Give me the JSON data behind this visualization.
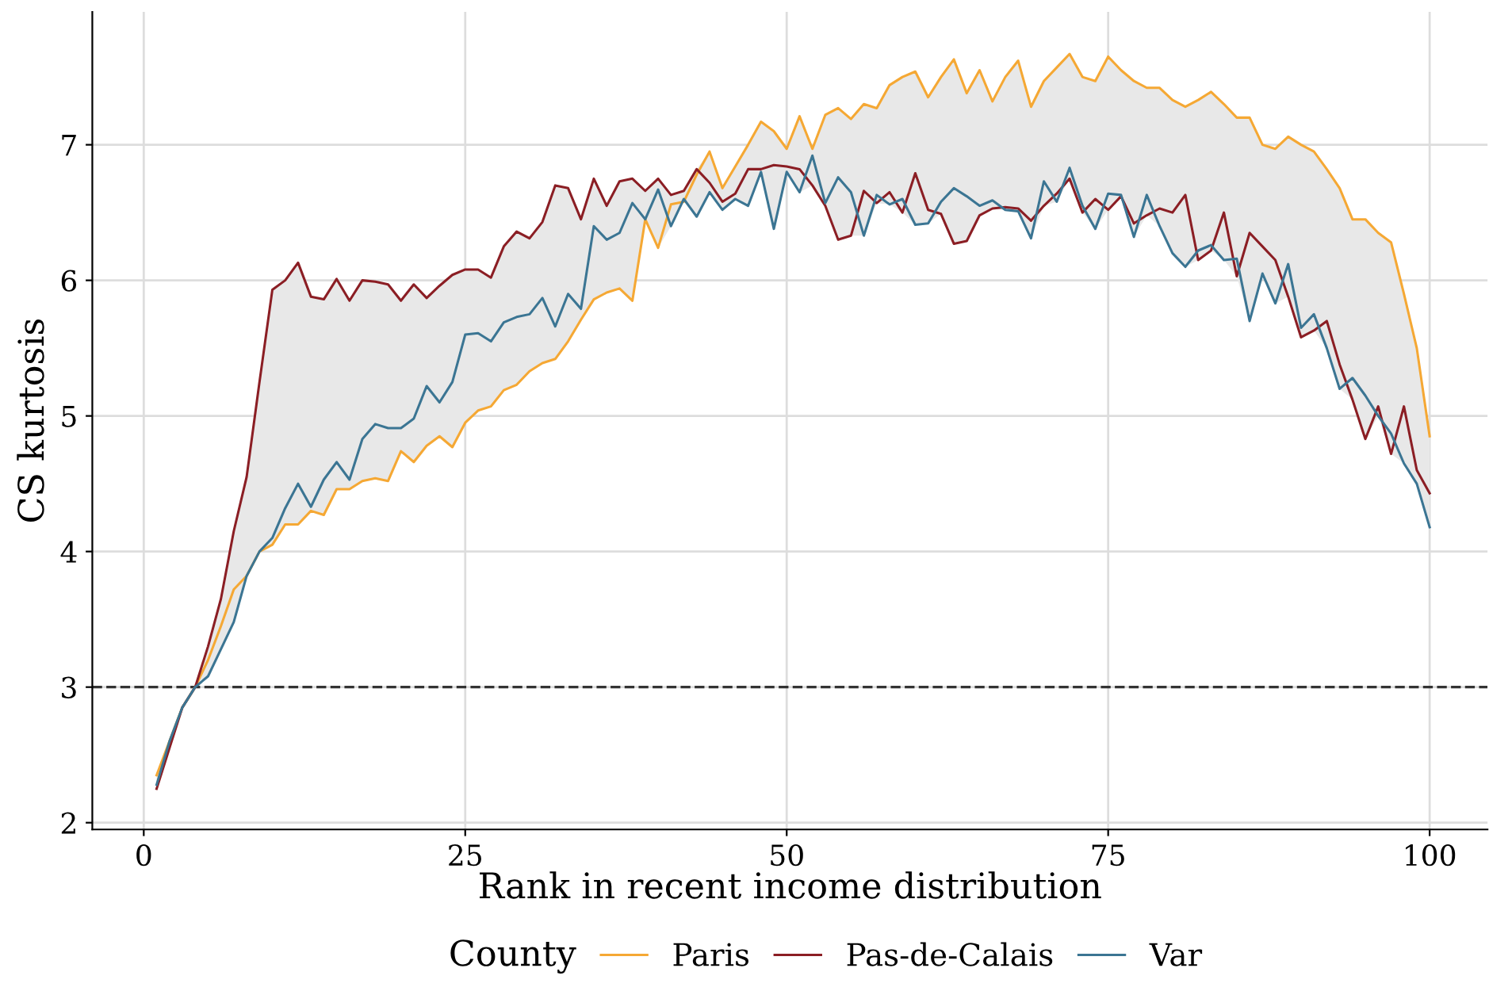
{
  "chart_data": {
    "type": "line",
    "xlabel": "Rank in recent income distribution",
    "ylabel": "CS kurtosis",
    "legend_title": "County",
    "legend": "bottom",
    "grid": true,
    "marker": "none",
    "line_style": "solid",
    "x": [
      1,
      2,
      3,
      4,
      5,
      6,
      7,
      8,
      9,
      10,
      11,
      12,
      13,
      14,
      15,
      16,
      17,
      18,
      19,
      20,
      21,
      22,
      23,
      24,
      25,
      26,
      27,
      28,
      29,
      30,
      31,
      32,
      33,
      34,
      35,
      36,
      37,
      38,
      39,
      40,
      41,
      42,
      43,
      44,
      45,
      46,
      47,
      48,
      49,
      50,
      51,
      52,
      53,
      54,
      55,
      56,
      57,
      58,
      59,
      60,
      61,
      62,
      63,
      64,
      65,
      66,
      67,
      68,
      69,
      70,
      71,
      72,
      73,
      74,
      75,
      76,
      77,
      78,
      79,
      80,
      81,
      82,
      83,
      84,
      85,
      86,
      87,
      88,
      89,
      90,
      91,
      92,
      93,
      94,
      95,
      96,
      97,
      98,
      99,
      100
    ],
    "xlim": [
      -4,
      104.5
    ],
    "xticks": [
      0,
      25,
      50,
      75,
      100
    ],
    "ylim": [
      1.95,
      7.98
    ],
    "yticks": [
      2,
      3,
      4,
      5,
      6,
      7
    ],
    "ref_lines": [
      {
        "axis": "y",
        "value": 3,
        "color": "#333333",
        "line_style": "dashed"
      }
    ],
    "series": [
      {
        "name": "Paris",
        "color": "#f5a834",
        "lower": [
          2.25,
          2.55,
          2.85,
          3.0,
          3.08,
          3.28,
          3.48,
          3.82,
          4.0,
          4.05,
          4.2,
          4.2,
          4.3,
          4.27,
          4.46,
          4.46,
          4.52,
          4.54,
          4.52,
          4.74,
          4.66,
          4.78,
          4.85,
          4.77,
          4.95,
          5.04,
          5.07,
          5.19,
          5.23,
          5.33,
          5.39,
          5.42,
          5.55,
          5.71,
          5.86,
          5.91,
          5.94,
          5.85,
          6.45,
          6.24,
          6.4,
          6.58,
          6.47,
          6.65,
          6.52,
          6.6,
          6.55,
          6.8,
          6.38,
          6.8,
          6.65,
          6.7,
          6.55,
          6.3,
          6.33,
          6.33,
          6.57,
          6.56,
          6.5,
          6.41,
          6.42,
          6.49,
          6.27,
          6.29,
          6.48,
          6.53,
          6.52,
          6.51,
          6.31,
          6.55,
          6.58,
          6.75,
          6.5,
          6.38,
          6.52,
          6.62,
          6.32,
          6.48,
          6.4,
          6.2,
          6.1,
          6.15,
          6.22,
          6.15,
          6.03,
          5.7,
          6.05,
          5.83,
          5.88,
          5.58,
          5.63,
          5.5,
          5.2,
          5.12,
          4.83,
          5.0,
          4.72,
          4.65,
          4.5,
          4.18
        ],
        "upper": [
          2.35,
          2.6,
          2.85,
          3.0,
          3.3,
          3.65,
          4.15,
          4.55,
          5.25,
          5.93,
          6.0,
          6.13,
          5.88,
          5.86,
          6.01,
          5.85,
          6.0,
          5.99,
          5.97,
          5.85,
          5.97,
          5.87,
          5.96,
          6.04,
          6.08,
          6.08,
          6.02,
          6.25,
          6.36,
          6.31,
          6.43,
          6.7,
          6.68,
          6.45,
          6.75,
          6.55,
          6.73,
          6.75,
          6.66,
          6.75,
          6.63,
          6.66,
          6.82,
          6.95,
          6.68,
          6.84,
          7.0,
          7.17,
          7.1,
          6.97,
          7.21,
          6.97,
          7.22,
          7.27,
          7.19,
          7.3,
          7.27,
          7.44,
          7.5,
          7.54,
          7.35,
          7.5,
          7.63,
          7.38,
          7.55,
          7.32,
          7.5,
          7.62,
          7.28,
          7.47,
          7.57,
          7.67,
          7.5,
          7.47,
          7.65,
          7.55,
          7.47,
          7.42,
          7.42,
          7.33,
          7.28,
          7.33,
          7.39,
          7.3,
          7.2,
          7.2,
          7.0,
          6.97,
          7.06,
          7.0,
          6.95,
          6.82,
          6.68,
          6.45,
          6.45,
          6.35,
          6.28,
          5.9,
          5.5,
          4.85
        ],
        "values": [
          2.35,
          2.6,
          2.85,
          3.0,
          3.2,
          3.45,
          3.72,
          3.82,
          4.0,
          4.05,
          4.2,
          4.2,
          4.3,
          4.27,
          4.46,
          4.46,
          4.52,
          4.54,
          4.52,
          4.74,
          4.66,
          4.78,
          4.85,
          4.77,
          4.95,
          5.04,
          5.07,
          5.19,
          5.23,
          5.33,
          5.39,
          5.42,
          5.55,
          5.71,
          5.86,
          5.91,
          5.94,
          5.85,
          6.45,
          6.24,
          6.56,
          6.58,
          6.78,
          6.95,
          6.68,
          6.84,
          7.0,
          7.17,
          7.1,
          6.97,
          7.21,
          6.97,
          7.22,
          7.27,
          7.19,
          7.3,
          7.27,
          7.44,
          7.5,
          7.54,
          7.35,
          7.5,
          7.63,
          7.38,
          7.55,
          7.32,
          7.5,
          7.62,
          7.28,
          7.47,
          7.57,
          7.67,
          7.5,
          7.47,
          7.65,
          7.55,
          7.47,
          7.42,
          7.42,
          7.33,
          7.28,
          7.33,
          7.39,
          7.3,
          7.2,
          7.2,
          7.0,
          6.97,
          7.06,
          7.0,
          6.95,
          6.82,
          6.68,
          6.45,
          6.45,
          6.35,
          6.28,
          5.9,
          5.5,
          4.85
        ]
      },
      {
        "name": "Pas-de-Calais",
        "color": "#8b1e24",
        "values": [
          2.25,
          2.55,
          2.85,
          3.0,
          3.3,
          3.65,
          4.15,
          4.55,
          5.25,
          5.93,
          6.0,
          6.13,
          5.88,
          5.86,
          6.01,
          5.85,
          6.0,
          5.99,
          5.97,
          5.85,
          5.97,
          5.87,
          5.96,
          6.04,
          6.08,
          6.08,
          6.02,
          6.25,
          6.36,
          6.31,
          6.43,
          6.7,
          6.68,
          6.45,
          6.75,
          6.55,
          6.73,
          6.75,
          6.66,
          6.75,
          6.63,
          6.66,
          6.82,
          6.72,
          6.58,
          6.64,
          6.82,
          6.82,
          6.85,
          6.84,
          6.82,
          6.7,
          6.55,
          6.3,
          6.33,
          6.66,
          6.57,
          6.65,
          6.5,
          6.79,
          6.52,
          6.49,
          6.27,
          6.29,
          6.48,
          6.53,
          6.54,
          6.53,
          6.44,
          6.55,
          6.64,
          6.75,
          6.5,
          6.6,
          6.52,
          6.62,
          6.42,
          6.48,
          6.53,
          6.5,
          6.63,
          6.15,
          6.22,
          6.5,
          6.03,
          6.35,
          6.25,
          6.15,
          5.88,
          5.58,
          5.63,
          5.7,
          5.38,
          5.12,
          4.83,
          5.07,
          4.72,
          5.07,
          4.6,
          4.43
        ]
      },
      {
        "name": "Var",
        "color": "#3b7593",
        "values": [
          2.28,
          2.6,
          2.85,
          3.0,
          3.08,
          3.28,
          3.48,
          3.82,
          4.0,
          4.1,
          4.32,
          4.5,
          4.33,
          4.53,
          4.66,
          4.53,
          4.83,
          4.94,
          4.91,
          4.91,
          4.98,
          5.22,
          5.1,
          5.25,
          5.6,
          5.61,
          5.55,
          5.69,
          5.73,
          5.75,
          5.87,
          5.66,
          5.9,
          5.79,
          6.4,
          6.3,
          6.35,
          6.57,
          6.45,
          6.67,
          6.4,
          6.6,
          6.47,
          6.65,
          6.52,
          6.6,
          6.55,
          6.8,
          6.38,
          6.8,
          6.65,
          6.92,
          6.57,
          6.76,
          6.65,
          6.33,
          6.63,
          6.56,
          6.6,
          6.41,
          6.42,
          6.58,
          6.68,
          6.62,
          6.55,
          6.59,
          6.52,
          6.51,
          6.31,
          6.73,
          6.58,
          6.83,
          6.55,
          6.38,
          6.64,
          6.63,
          6.32,
          6.63,
          6.4,
          6.2,
          6.1,
          6.22,
          6.26,
          6.15,
          6.16,
          5.7,
          6.05,
          5.83,
          6.12,
          5.65,
          5.75,
          5.5,
          5.2,
          5.28,
          5.15,
          5.0,
          4.87,
          4.65,
          4.5,
          4.18
        ]
      }
    ]
  }
}
